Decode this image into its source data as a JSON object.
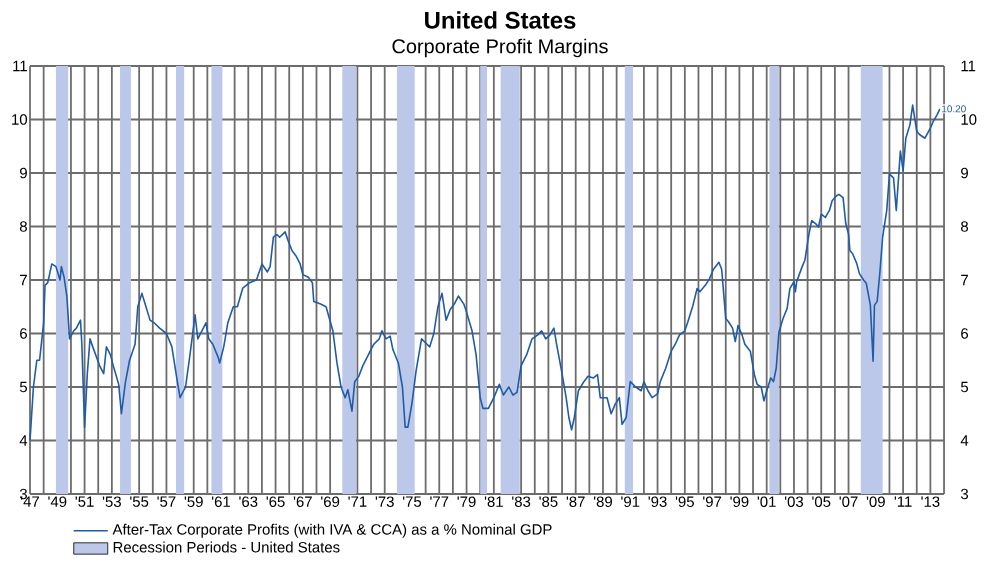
{
  "chart_data": {
    "type": "line",
    "title": "United States",
    "subtitle": "Corporate Profit Margins",
    "xlim": [
      1947,
      2014
    ],
    "ylim": [
      3,
      11
    ],
    "y2lim": [
      3,
      11
    ],
    "xticks": [
      {
        "value": 1947,
        "label": "'47"
      },
      {
        "value": 1948,
        "label": null
      },
      {
        "value": 1949,
        "label": "'49"
      },
      {
        "value": 1950,
        "label": null
      },
      {
        "value": 1951,
        "label": "'51"
      },
      {
        "value": 1952,
        "label": null
      },
      {
        "value": 1953,
        "label": "'53"
      },
      {
        "value": 1954,
        "label": null
      },
      {
        "value": 1955,
        "label": "'55"
      },
      {
        "value": 1956,
        "label": null
      },
      {
        "value": 1957,
        "label": "'57"
      },
      {
        "value": 1958,
        "label": null
      },
      {
        "value": 1959,
        "label": "'59"
      },
      {
        "value": 1960,
        "label": null
      },
      {
        "value": 1961,
        "label": "'61"
      },
      {
        "value": 1962,
        "label": null
      },
      {
        "value": 1963,
        "label": "'63"
      },
      {
        "value": 1964,
        "label": null
      },
      {
        "value": 1965,
        "label": "'65"
      },
      {
        "value": 1966,
        "label": null
      },
      {
        "value": 1967,
        "label": "'67"
      },
      {
        "value": 1968,
        "label": null
      },
      {
        "value": 1969,
        "label": "'69"
      },
      {
        "value": 1970,
        "label": null
      },
      {
        "value": 1971,
        "label": "'71"
      },
      {
        "value": 1972,
        "label": null
      },
      {
        "value": 1973,
        "label": "'73"
      },
      {
        "value": 1974,
        "label": null
      },
      {
        "value": 1975,
        "label": "'75"
      },
      {
        "value": 1976,
        "label": null
      },
      {
        "value": 1977,
        "label": "'77"
      },
      {
        "value": 1978,
        "label": null
      },
      {
        "value": 1979,
        "label": "'79"
      },
      {
        "value": 1980,
        "label": null
      },
      {
        "value": 1981,
        "label": "'81"
      },
      {
        "value": 1982,
        "label": null
      },
      {
        "value": 1983,
        "label": "'83"
      },
      {
        "value": 1984,
        "label": null
      },
      {
        "value": 1985,
        "label": "'85"
      },
      {
        "value": 1986,
        "label": null
      },
      {
        "value": 1987,
        "label": "'87"
      },
      {
        "value": 1988,
        "label": null
      },
      {
        "value": 1989,
        "label": "'89"
      },
      {
        "value": 1990,
        "label": null
      },
      {
        "value": 1991,
        "label": "'91"
      },
      {
        "value": 1992,
        "label": null
      },
      {
        "value": 1993,
        "label": "'93"
      },
      {
        "value": 1994,
        "label": null
      },
      {
        "value": 1995,
        "label": "'95"
      },
      {
        "value": 1996,
        "label": null
      },
      {
        "value": 1997,
        "label": "'97"
      },
      {
        "value": 1998,
        "label": null
      },
      {
        "value": 1999,
        "label": "'99"
      },
      {
        "value": 2000,
        "label": null
      },
      {
        "value": 2001,
        "label": "'01"
      },
      {
        "value": 2002,
        "label": null
      },
      {
        "value": 2003,
        "label": "'03"
      },
      {
        "value": 2004,
        "label": null
      },
      {
        "value": 2005,
        "label": "'05"
      },
      {
        "value": 2006,
        "label": null
      },
      {
        "value": 2007,
        "label": "'07"
      },
      {
        "value": 2008,
        "label": null
      },
      {
        "value": 2009,
        "label": "'09"
      },
      {
        "value": 2010,
        "label": null
      },
      {
        "value": 2011,
        "label": "'11"
      },
      {
        "value": 2012,
        "label": null
      },
      {
        "value": 2013,
        "label": "'13"
      },
      {
        "value": 2014,
        "label": null
      }
    ],
    "yticks": [
      3,
      4,
      5,
      6,
      7,
      8,
      9,
      10,
      11
    ],
    "y2ticks": [
      3,
      4,
      5,
      6,
      7,
      8,
      9,
      10,
      11
    ],
    "grid": true,
    "legend": "bottom",
    "line_style": "solid",
    "series": [
      {
        "name": "After-Tax Corporate Profits (with IVA & CCA) as a % Nominal GDP",
        "color": "#1f5ca8",
        "x": [
          1947.0,
          1947.25,
          1947.5,
          1947.7,
          1948.0,
          1948.1,
          1948.3,
          1948.6,
          1948.9,
          1949.2,
          1949.3,
          1949.5,
          1949.7,
          1949.9,
          1950.2,
          1950.4,
          1950.7,
          1950.8,
          1951.0,
          1951.2,
          1951.4,
          1951.6,
          1952.1,
          1952.4,
          1952.6,
          1952.9,
          1953.1,
          1953.5,
          1953.7,
          1954.0,
          1954.3,
          1954.7,
          1954.9,
          1955.2,
          1955.5,
          1955.8,
          1956.1,
          1956.5,
          1957.0,
          1957.4,
          1957.8,
          1958.0,
          1958.4,
          1958.7,
          1959.1,
          1959.3,
          1959.6,
          1959.9,
          1960.1,
          1960.4,
          1960.8,
          1960.9,
          1961.2,
          1961.5,
          1961.9,
          1962.2,
          1962.6,
          1963.1,
          1963.6,
          1964.0,
          1964.4,
          1964.6,
          1964.84,
          1965.1,
          1965.3,
          1965.7,
          1965.9,
          1966.2,
          1966.5,
          1966.8,
          1967.0,
          1967.4,
          1967.7,
          1967.8,
          1968.3,
          1968.7,
          1969.2,
          1969.5,
          1969.8,
          1970.1,
          1970.3,
          1970.6,
          1970.8,
          1971.1,
          1971.4,
          1971.8,
          1972.2,
          1972.6,
          1972.8,
          1973.1,
          1973.4,
          1973.6,
          1974.0,
          1974.3,
          1974.5,
          1974.7,
          1975.0,
          1975.3,
          1975.7,
          1976.1,
          1976.3,
          1976.6,
          1976.9,
          1977.2,
          1977.5,
          1977.8,
          1978.1,
          1978.4,
          1978.8,
          1979.0,
          1979.4,
          1979.7,
          1980.0,
          1980.2,
          1980.6,
          1981.0,
          1981.4,
          1981.7,
          1982.1,
          1982.4,
          1982.7,
          1983.0,
          1983.4,
          1983.8,
          1984.2,
          1984.5,
          1984.8,
          1985.1,
          1985.4,
          1985.6,
          1986.0,
          1986.3,
          1986.5,
          1986.7,
          1986.9,
          1987.2,
          1987.6,
          1987.9,
          1988.3,
          1988.6,
          1988.8,
          1989.3,
          1989.6,
          1989.9,
          1990.2,
          1990.4,
          1990.7,
          1991.0,
          1991.4,
          1991.8,
          1992.0,
          1992.3,
          1992.6,
          1993.0,
          1993.2,
          1993.6,
          1994.0,
          1994.3,
          1994.6,
          1995.0,
          1995.2,
          1995.6,
          1995.9,
          1996.1,
          1996.5,
          1996.8,
          1997.1,
          1997.5,
          1997.7,
          1998.0,
          1998.2,
          1998.5,
          1998.7,
          1998.9,
          1999.2,
          1999.4,
          1999.8,
          2000.1,
          2000.3,
          2000.6,
          2000.8,
          2001.0,
          2001.3,
          2001.5,
          2001.7,
          2001.9,
          2002.2,
          2002.5,
          2002.7,
          2003.0,
          2003.1,
          2003.2,
          2003.6,
          2003.8,
          2004.1,
          2004.3,
          2004.6,
          2004.8,
          2005.0,
          2005.3,
          2005.6,
          2005.8,
          2006.1,
          2006.3,
          2006.6,
          2006.8,
          2007.0,
          2007.1,
          2007.3,
          2007.6,
          2007.8,
          2008.1,
          2008.3,
          2008.6,
          2008.8,
          2008.9,
          2009.1,
          2009.3,
          2009.5,
          2009.8,
          2010.0,
          2010.3,
          2010.5,
          2010.8,
          2011.0,
          2011.2,
          2011.5,
          2011.7,
          2012.0,
          2012.2,
          2012.6,
          2013.0,
          2013.2,
          2013.5,
          2013.7
        ],
        "values": [
          4.0,
          5.0,
          5.5,
          5.5,
          6.2,
          6.9,
          6.95,
          7.3,
          7.25,
          7.0,
          7.25,
          7.05,
          6.7,
          5.9,
          6.05,
          6.1,
          6.25,
          5.8,
          4.25,
          5.25,
          5.9,
          5.75,
          5.4,
          5.25,
          5.75,
          5.6,
          5.4,
          5.05,
          4.5,
          5.1,
          5.5,
          5.8,
          6.5,
          6.75,
          6.5,
          6.25,
          6.2,
          6.1,
          6.0,
          5.75,
          5.1,
          4.8,
          5.0,
          5.55,
          6.35,
          5.9,
          6.05,
          6.2,
          5.9,
          5.8,
          5.55,
          5.45,
          5.75,
          6.2,
          6.5,
          6.5,
          6.85,
          6.95,
          7.0,
          7.3,
          7.15,
          7.25,
          7.8,
          7.85,
          7.8,
          7.9,
          7.75,
          7.55,
          7.45,
          7.3,
          7.1,
          7.05,
          6.95,
          6.6,
          6.55,
          6.5,
          6.05,
          5.45,
          5.0,
          4.8,
          4.95,
          4.55,
          5.1,
          5.2,
          5.4,
          5.6,
          5.8,
          5.9,
          6.05,
          5.9,
          5.95,
          5.7,
          5.45,
          5.0,
          4.25,
          4.25,
          4.7,
          5.3,
          5.9,
          5.8,
          5.75,
          6.0,
          6.5,
          6.75,
          6.25,
          6.45,
          6.55,
          6.7,
          6.55,
          6.4,
          6.05,
          5.6,
          4.8,
          4.6,
          4.6,
          4.8,
          5.05,
          4.85,
          5.0,
          4.85,
          4.9,
          5.4,
          5.6,
          5.9,
          5.97,
          6.05,
          5.9,
          5.97,
          6.1,
          5.8,
          5.25,
          4.8,
          4.43,
          4.2,
          4.43,
          4.93,
          5.1,
          5.2,
          5.17,
          5.23,
          4.8,
          4.8,
          4.5,
          4.68,
          4.8,
          4.3,
          4.43,
          5.1,
          5.0,
          4.93,
          5.1,
          4.93,
          4.8,
          4.87,
          5.1,
          5.35,
          5.67,
          5.8,
          5.97,
          6.05,
          6.2,
          6.53,
          6.84,
          6.78,
          6.9,
          7.02,
          7.2,
          7.33,
          7.2,
          6.28,
          6.22,
          6.1,
          5.85,
          6.15,
          5.97,
          5.8,
          5.67,
          5.23,
          5.05,
          5.0,
          4.74,
          4.93,
          5.17,
          5.1,
          5.35,
          6.03,
          6.28,
          6.47,
          6.84,
          6.97,
          6.78,
          6.97,
          7.25,
          7.37,
          7.86,
          8.11,
          8.05,
          7.99,
          8.23,
          8.17,
          8.3,
          8.48,
          8.57,
          8.6,
          8.54,
          8.05,
          7.86,
          7.55,
          7.49,
          7.31,
          7.12,
          7.0,
          6.94,
          6.53,
          5.48,
          6.53,
          6.6,
          7.15,
          7.8,
          8.3,
          8.98,
          8.91,
          8.3,
          9.41,
          9.04,
          9.65,
          9.9,
          10.27,
          9.78,
          9.72,
          9.65,
          9.84,
          9.96,
          10.09,
          10.2
        ]
      }
    ],
    "bands": [
      {
        "axis": "x",
        "from": 1948.9,
        "to": 1949.8,
        "label": "Recession Periods - United States",
        "color": "#bcc8ea"
      },
      {
        "axis": "x",
        "from": 1953.6,
        "to": 1954.4,
        "color": "#bcc8ea"
      },
      {
        "axis": "x",
        "from": 1957.7,
        "to": 1958.3,
        "color": "#bcc8ea"
      },
      {
        "axis": "x",
        "from": 1960.3,
        "to": 1961.1,
        "color": "#bcc8ea"
      },
      {
        "axis": "x",
        "from": 1969.9,
        "to": 1970.9,
        "color": "#bcc8ea"
      },
      {
        "axis": "x",
        "from": 1973.9,
        "to": 1975.2,
        "color": "#bcc8ea"
      },
      {
        "axis": "x",
        "from": 1980.0,
        "to": 1980.5,
        "color": "#bcc8ea"
      },
      {
        "axis": "x",
        "from": 1981.5,
        "to": 1982.9,
        "color": "#bcc8ea"
      },
      {
        "axis": "x",
        "from": 1990.6,
        "to": 1991.2,
        "color": "#bcc8ea"
      },
      {
        "axis": "x",
        "from": 2001.2,
        "to": 2001.9,
        "color": "#bcc8ea"
      },
      {
        "axis": "x",
        "from": 2007.9,
        "to": 2009.5,
        "color": "#bcc8ea"
      }
    ],
    "annotations": [
      {
        "text": "10.20",
        "x": 2013.7,
        "y": 10.2
      }
    ]
  }
}
